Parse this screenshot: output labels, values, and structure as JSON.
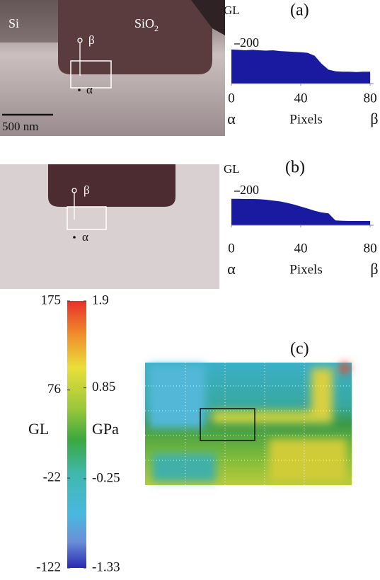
{
  "panels": {
    "a": {
      "label": "(a)",
      "image": {
        "left": "Si",
        "right": "SiO",
        "right_sub": "2",
        "top_marker": "β",
        "bottom_marker": "α",
        "scale_bar": "500 nm"
      }
    },
    "b": {
      "label": "(b)",
      "image": {
        "top_marker": "β",
        "bottom_marker": "α"
      }
    },
    "c": {
      "label": "(c)"
    }
  },
  "chart_data": [
    {
      "type": "area",
      "y_label": "GL",
      "x_label": "Pixels",
      "x_start_label": "α",
      "x_end_label": "β",
      "color": "#1a1aa0",
      "x": [
        0,
        4,
        8,
        12,
        16,
        20,
        24,
        28,
        32,
        36,
        40,
        44,
        48,
        52,
        56,
        60,
        64,
        68,
        72,
        76,
        80
      ],
      "values": [
        172,
        170,
        168,
        170,
        168,
        166,
        168,
        164,
        162,
        160,
        158,
        155,
        140,
        100,
        70,
        62,
        60,
        60,
        58,
        60,
        60
      ],
      "xlim": [
        0,
        82
      ],
      "ylim": [
        0,
        225
      ],
      "xticks": [
        0,
        40,
        80
      ],
      "yticks": [
        200
      ]
    },
    {
      "type": "area",
      "y_label": "GL",
      "x_label": "Pixels",
      "x_start_label": "α",
      "x_end_label": "β",
      "color": "#1a1aa0",
      "x": [
        0,
        4,
        8,
        12,
        16,
        20,
        24,
        28,
        32,
        36,
        40,
        44,
        48,
        52,
        56,
        60,
        64,
        68,
        72,
        76,
        80
      ],
      "values": [
        155,
        155,
        154,
        154,
        153,
        150,
        145,
        140,
        132,
        122,
        110,
        98,
        85,
        75,
        70,
        28,
        26,
        25,
        25,
        25,
        25
      ],
      "xlim": [
        0,
        82
      ],
      "ylim": [
        0,
        250
      ],
      "xticks": [
        0,
        40,
        80
      ],
      "yticks": [
        200
      ]
    }
  ],
  "colorbar": {
    "left_label": "GL",
    "right_label": "GPa",
    "left_ticks": [
      175,
      76,
      -22,
      -122
    ],
    "right_ticks": [
      1.9,
      0.85,
      -0.25,
      -1.33
    ]
  }
}
